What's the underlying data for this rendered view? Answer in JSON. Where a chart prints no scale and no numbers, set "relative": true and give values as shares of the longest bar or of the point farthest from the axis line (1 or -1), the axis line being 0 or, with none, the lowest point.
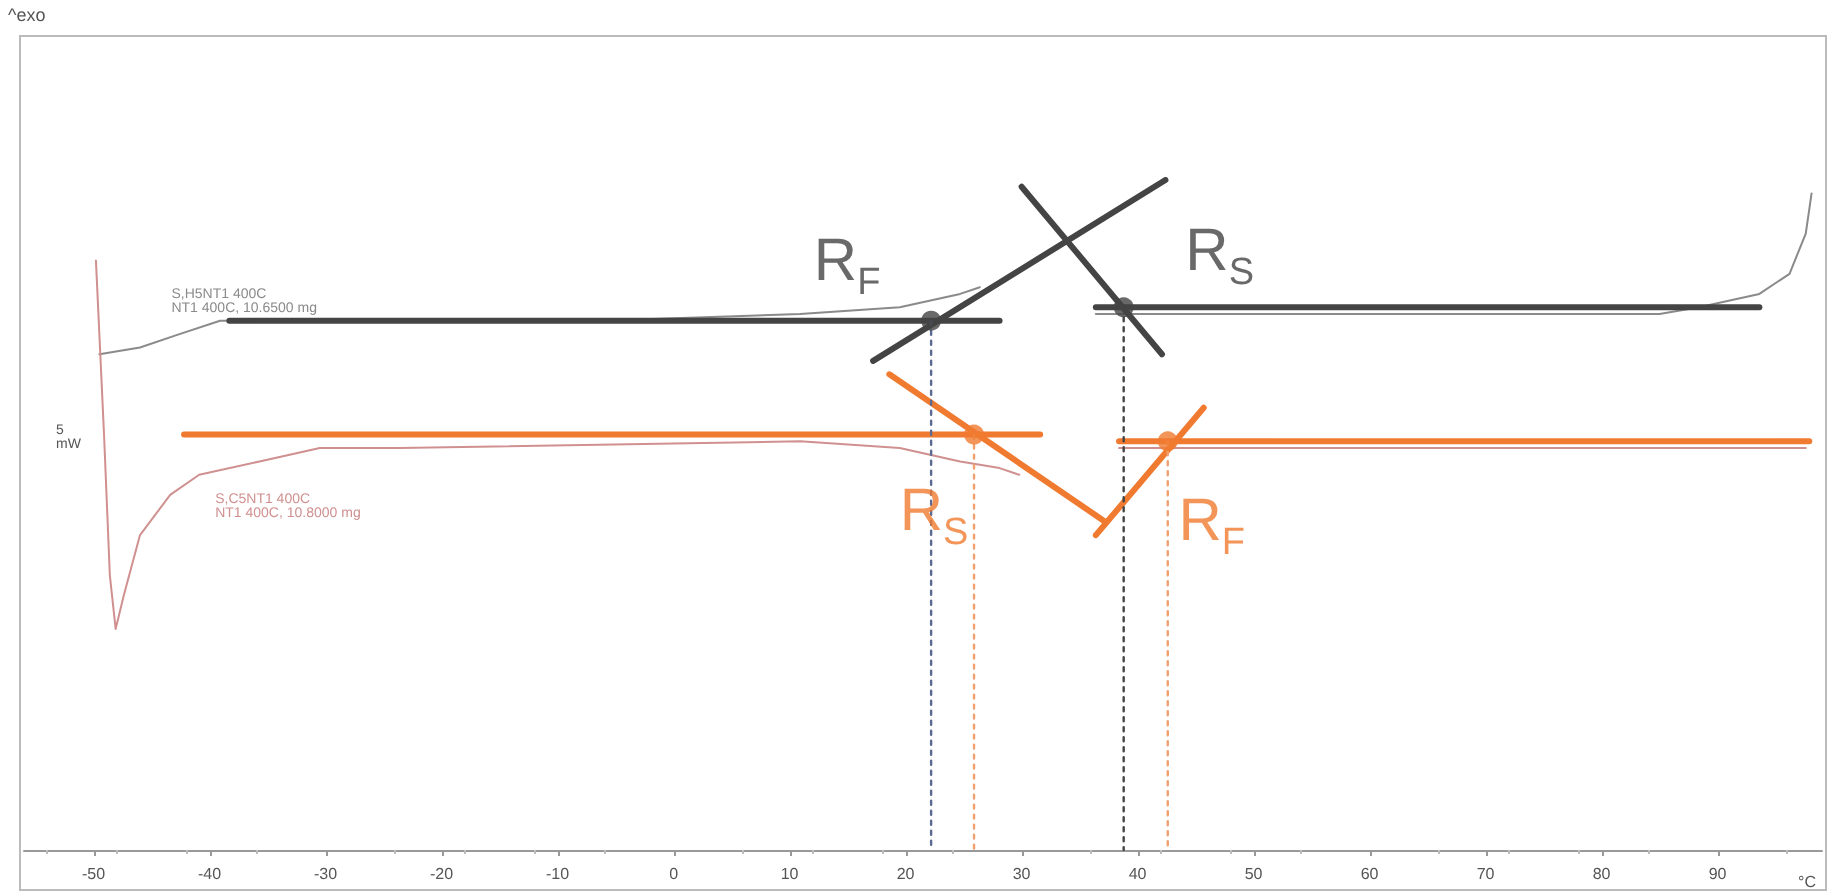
{
  "chart_data": {
    "type": "line",
    "relative": true,
    "xlabel": "°C",
    "xlim": [
      -56,
      99
    ],
    "xticks": [
      -50,
      -40,
      -30,
      -20,
      -10,
      0,
      10,
      20,
      30,
      40,
      50,
      60,
      70,
      80,
      90
    ],
    "tick_labels": "x",
    "grid": false,
    "legend": false,
    "marker": "none",
    "annotations": [
      "^exo",
      "5\nmW"
    ],
    "series": [
      {
        "name": "S,H5NT1 400C\nNT1 400C, 10.6500 mg",
        "color": "#8a8a8a",
        "x": [
          -49.5,
          -46.0,
          -42.6,
          -39.1,
          -35.7,
          -6.4,
          10.9,
          19.5,
          24.7,
          26.4,
          null,
          36.4,
          38.4,
          45.3,
          62.6,
          85.0,
          88.4,
          93.6,
          96.2,
          97.6,
          98.1
        ],
        "values": [
          0.74,
          0.75,
          0.77,
          0.79,
          0.79,
          0.79,
          0.8,
          0.81,
          0.83,
          0.84,
          null,
          0.8,
          0.8,
          0.8,
          0.8,
          0.8,
          0.81,
          0.83,
          0.86,
          0.92,
          0.98
        ]
      },
      {
        "name": "S,C5NT1 400C\nNT1 400C, 10.8000 mg",
        "color": "#d09090",
        "x": [
          -49.8,
          -49.1,
          -48.6,
          -48.1,
          -47.4,
          -46.0,
          -43.4,
          -40.9,
          -35.7,
          -30.5,
          -23.6,
          10.9,
          19.5,
          24.7,
          28.1,
          29.8,
          null,
          38.4,
          45.3,
          62.6,
          85.0,
          97.6
        ],
        "values": [
          0.88,
          0.62,
          0.41,
          0.33,
          0.38,
          0.47,
          0.53,
          0.56,
          0.58,
          0.6,
          0.6,
          0.61,
          0.6,
          0.58,
          0.57,
          0.56,
          null,
          0.6,
          0.6,
          0.6,
          0.6,
          0.6
        ]
      },
      {
        "color": "#444444",
        "x": [
          -38.3,
          28.1
        ],
        "values": [
          0.79,
          0.79
        ]
      },
      {
        "color": "#444444",
        "x": [
          36.4,
          93.6
        ],
        "values": [
          0.81,
          0.81
        ]
      },
      {
        "color": "#444444",
        "x": [
          17.2,
          42.4
        ],
        "values": [
          0.73,
          1.0
        ]
      },
      {
        "color": "#444444",
        "x": [
          30.0,
          42.1
        ],
        "values": [
          0.99,
          0.74
        ]
      },
      {
        "color": "#f07a30",
        "x": [
          -42.2,
          31.6
        ],
        "values": [
          0.62,
          0.62
        ]
      },
      {
        "color": "#f07a30",
        "x": [
          38.4,
          97.9
        ],
        "values": [
          0.61,
          0.61
        ]
      },
      {
        "color": "#f07a30",
        "x": [
          18.6,
          37.2
        ],
        "values": [
          0.71,
          0.49
        ]
      },
      {
        "color": "#f07a30",
        "x": [
          36.4,
          45.7
        ],
        "values": [
          0.47,
          0.66
        ]
      },
      {
        "color": "#5a6a90",
        "line_style": "dotted",
        "x": [
          22.2,
          22.2
        ],
        "values": [
          0.79,
          0
        ]
      },
      {
        "color": "#444444",
        "line_style": "dotted",
        "x": [
          38.8,
          38.8
        ],
        "values": [
          0.81,
          0
        ]
      },
      {
        "color": "#f0a070",
        "line_style": "dotted",
        "x": [
          25.9,
          25.9
        ],
        "values": [
          0.62,
          0
        ]
      },
      {
        "color": "#f0a070",
        "line_style": "dotted",
        "x": [
          42.6,
          42.6
        ],
        "values": [
          0.61,
          0
        ]
      },
      {
        "type": "scatter",
        "marker": "circle",
        "name": "R$_{F}$",
        "color": "#444444",
        "x": [
          22.2
        ],
        "values": [
          0.79
        ]
      },
      {
        "type": "scatter",
        "marker": "circle",
        "name": "R$_{S}$",
        "color": "#444444",
        "x": [
          38.8
        ],
        "values": [
          0.81
        ]
      },
      {
        "type": "scatter",
        "marker": "circle",
        "name": "R$_{S}$",
        "color": "#f07a30",
        "x": [
          25.9
        ],
        "values": [
          0.62
        ]
      },
      {
        "type": "scatter",
        "marker": "circle",
        "name": "R$_{F}$",
        "color": "#f07a30",
        "x": [
          42.6
        ],
        "values": [
          0.61
        ]
      }
    ]
  }
}
